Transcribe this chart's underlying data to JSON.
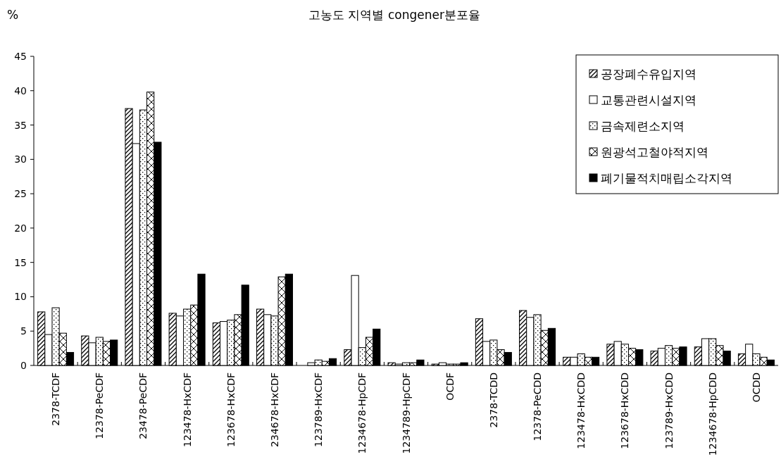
{
  "chart_data": {
    "type": "bar",
    "title": "고농도 지역별 congener분포율",
    "ylabel": "%",
    "categories": [
      "2378-TCDF",
      "12378-PeCDF",
      "23478-PeCDF",
      "123478-HxCDF",
      "123678-HxCDF",
      "234678-HxCDF",
      "123789-HxCDF",
      "1234678-HpCDF",
      "1234789-HpCDF",
      "OCDF",
      "2378-TCDD",
      "12378-PeCDD",
      "123478-HxCDD",
      "123678-HxCDD",
      "123789-HxCDD",
      "1234678-HpCDD",
      "OCDD"
    ],
    "series": [
      {
        "name": "공장폐수유입지역",
        "color": "#000000",
        "values": [
          7.8,
          4.3,
          37.4,
          7.6,
          6.2,
          8.2,
          null,
          2.3,
          0.4,
          0.2,
          6.8,
          8.0,
          1.2,
          3.1,
          2.1,
          2.7,
          1.7
        ]
      },
      {
        "name": "교통관련시설지역",
        "color": "#ffffff",
        "values": [
          4.5,
          3.3,
          32.3,
          7.2,
          6.4,
          7.4,
          0.4,
          13.1,
          0.2,
          0.4,
          3.5,
          7.0,
          1.2,
          3.5,
          2.5,
          3.9,
          3.1
        ]
      },
      {
        "name": "금속제련소지역",
        "color": "#000000",
        "values": [
          8.4,
          4.1,
          37.2,
          8.2,
          6.6,
          7.2,
          0.8,
          2.6,
          0.4,
          0.2,
          3.7,
          7.4,
          1.7,
          3.1,
          2.9,
          3.9,
          1.7
        ]
      },
      {
        "name": "원광석고철야적지역",
        "color": "#000000",
        "values": [
          4.7,
          3.5,
          39.8,
          8.8,
          7.4,
          12.9,
          0.6,
          4.1,
          0.4,
          0.2,
          2.3,
          5.1,
          1.2,
          2.5,
          2.5,
          2.9,
          1.2
        ]
      },
      {
        "name": "폐기물적치매립소각지역",
        "color": "#000000",
        "values": [
          1.9,
          3.7,
          32.5,
          13.3,
          11.7,
          13.3,
          1.0,
          5.3,
          0.8,
          0.4,
          1.9,
          5.4,
          1.2,
          2.3,
          2.7,
          2.1,
          0.8
        ]
      }
    ],
    "ylim": [
      0,
      45
    ],
    "yticks": [
      0,
      5,
      10,
      15,
      20,
      25,
      30,
      35,
      40,
      45
    ],
    "grid": false,
    "legend": "top right"
  }
}
